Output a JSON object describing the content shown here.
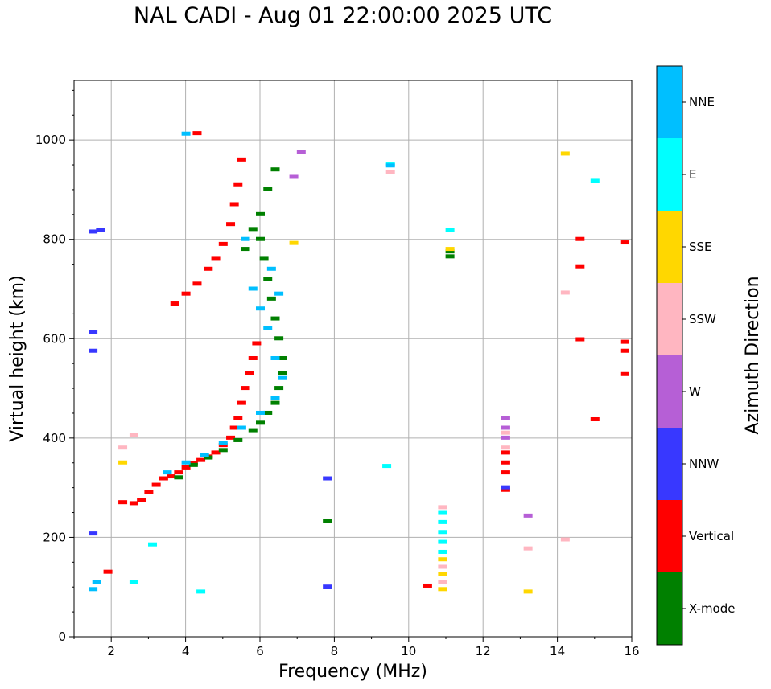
{
  "chart_data": {
    "type": "scatter",
    "title": "NAL CADI - Aug 01 22:00:00 2025 UTC",
    "xlabel": "Frequency (MHz)",
    "ylabel": "Virtual height (km)",
    "xlim": [
      1,
      16
    ],
    "ylim": [
      0,
      1120
    ],
    "xticks": [
      2,
      4,
      6,
      8,
      10,
      12,
      14,
      16
    ],
    "yticks": [
      0,
      200,
      400,
      600,
      800,
      1000
    ],
    "grid": true,
    "colorbar": {
      "label": "Azimuth Direction",
      "categories": [
        {
          "name": "X-mode",
          "color": "#008000"
        },
        {
          "name": "Vertical",
          "color": "#ff0000"
        },
        {
          "name": "NNW",
          "color": "#3838ff"
        },
        {
          "name": "W",
          "color": "#b65fd6"
        },
        {
          "name": "SSW",
          "color": "#ffb6c1"
        },
        {
          "name": "SSE",
          "color": "#ffd700"
        },
        {
          "name": "E",
          "color": "#00ffff"
        },
        {
          "name": "NNE",
          "color": "#00bfff"
        }
      ]
    },
    "series": [
      {
        "name": "Vertical",
        "points": [
          [
            2.3,
            270
          ],
          [
            2.6,
            268
          ],
          [
            2.8,
            275
          ],
          [
            3.0,
            290
          ],
          [
            3.2,
            305
          ],
          [
            3.4,
            318
          ],
          [
            3.6,
            322
          ],
          [
            3.8,
            330
          ],
          [
            4.0,
            340
          ],
          [
            4.2,
            348
          ],
          [
            4.4,
            355
          ],
          [
            4.6,
            362
          ],
          [
            4.8,
            370
          ],
          [
            5.0,
            385
          ],
          [
            5.2,
            400
          ],
          [
            5.3,
            420
          ],
          [
            5.4,
            440
          ],
          [
            5.5,
            470
          ],
          [
            5.6,
            500
          ],
          [
            5.7,
            530
          ],
          [
            5.8,
            560
          ],
          [
            5.9,
            590
          ],
          [
            3.7,
            670
          ],
          [
            4.0,
            690
          ],
          [
            4.3,
            710
          ],
          [
            4.6,
            740
          ],
          [
            4.8,
            760
          ],
          [
            5.0,
            790
          ],
          [
            5.2,
            830
          ],
          [
            5.3,
            870
          ],
          [
            5.4,
            910
          ],
          [
            5.5,
            960
          ],
          [
            14.6,
            800
          ],
          [
            14.6,
            745
          ],
          [
            14.6,
            598
          ],
          [
            15.0,
            437
          ],
          [
            15.8,
            793
          ],
          [
            15.8,
            593
          ],
          [
            15.8,
            575
          ],
          [
            15.8,
            528
          ],
          [
            12.6,
            295
          ],
          [
            12.6,
            330
          ],
          [
            12.6,
            350
          ],
          [
            12.6,
            370
          ],
          [
            10.5,
            102
          ],
          [
            4.3,
            1013
          ],
          [
            1.9,
            130
          ]
        ]
      },
      {
        "name": "X-mode",
        "points": [
          [
            3.8,
            320
          ],
          [
            4.2,
            345
          ],
          [
            4.6,
            360
          ],
          [
            5.0,
            375
          ],
          [
            5.4,
            395
          ],
          [
            5.8,
            415
          ],
          [
            6.0,
            430
          ],
          [
            6.2,
            450
          ],
          [
            6.4,
            470
          ],
          [
            6.5,
            500
          ],
          [
            6.6,
            530
          ],
          [
            6.6,
            560
          ],
          [
            6.5,
            600
          ],
          [
            6.4,
            640
          ],
          [
            6.3,
            680
          ],
          [
            6.2,
            720
          ],
          [
            6.1,
            760
          ],
          [
            6.0,
            800
          ],
          [
            6.0,
            850
          ],
          [
            6.2,
            900
          ],
          [
            6.4,
            940
          ],
          [
            5.6,
            780
          ],
          [
            5.8,
            820
          ],
          [
            11.1,
            775
          ],
          [
            11.1,
            765
          ],
          [
            7.8,
            232
          ]
        ]
      },
      {
        "name": "NNW",
        "points": [
          [
            1.5,
            815
          ],
          [
            1.5,
            612
          ],
          [
            1.5,
            575
          ],
          [
            1.5,
            207
          ],
          [
            7.8,
            318
          ],
          [
            7.8,
            100
          ],
          [
            12.6,
            300
          ],
          [
            1.7,
            818
          ]
        ]
      },
      {
        "name": "W",
        "points": [
          [
            12.6,
            440
          ],
          [
            12.6,
            420
          ],
          [
            12.6,
            400
          ],
          [
            13.2,
            243
          ],
          [
            7.1,
            975
          ],
          [
            6.9,
            925
          ]
        ]
      },
      {
        "name": "SSW",
        "points": [
          [
            12.6,
            410
          ],
          [
            12.6,
            380
          ],
          [
            10.9,
            260
          ],
          [
            10.9,
            140
          ],
          [
            10.9,
            110
          ],
          [
            13.2,
            177
          ],
          [
            14.2,
            692
          ],
          [
            14.2,
            195
          ],
          [
            2.6,
            405
          ],
          [
            2.3,
            380
          ],
          [
            9.5,
            935
          ]
        ]
      },
      {
        "name": "SSE",
        "points": [
          [
            10.9,
            155
          ],
          [
            10.9,
            125
          ],
          [
            10.9,
            95
          ],
          [
            13.2,
            90
          ],
          [
            14.2,
            972
          ],
          [
            11.1,
            780
          ],
          [
            6.9,
            792
          ],
          [
            2.3,
            350
          ]
        ]
      },
      {
        "name": "E",
        "points": [
          [
            10.9,
            250
          ],
          [
            10.9,
            230
          ],
          [
            10.9,
            210
          ],
          [
            10.9,
            190
          ],
          [
            10.9,
            170
          ],
          [
            11.1,
            818
          ],
          [
            15.0,
            917
          ],
          [
            9.4,
            343
          ],
          [
            9.5,
            950
          ],
          [
            4.4,
            90
          ],
          [
            2.6,
            110
          ],
          [
            3.1,
            185
          ]
        ]
      },
      {
        "name": "NNE",
        "points": [
          [
            3.5,
            330
          ],
          [
            4.0,
            350
          ],
          [
            4.5,
            365
          ],
          [
            5.0,
            390
          ],
          [
            5.5,
            420
          ],
          [
            6.0,
            450
          ],
          [
            6.4,
            480
          ],
          [
            6.6,
            520
          ],
          [
            6.4,
            560
          ],
          [
            6.2,
            620
          ],
          [
            6.0,
            660
          ],
          [
            5.8,
            700
          ],
          [
            5.6,
            800
          ],
          [
            6.3,
            740
          ],
          [
            6.5,
            690
          ],
          [
            9.5,
            948
          ],
          [
            4.0,
            1012
          ],
          [
            1.6,
            110
          ],
          [
            1.5,
            95
          ]
        ]
      }
    ]
  }
}
